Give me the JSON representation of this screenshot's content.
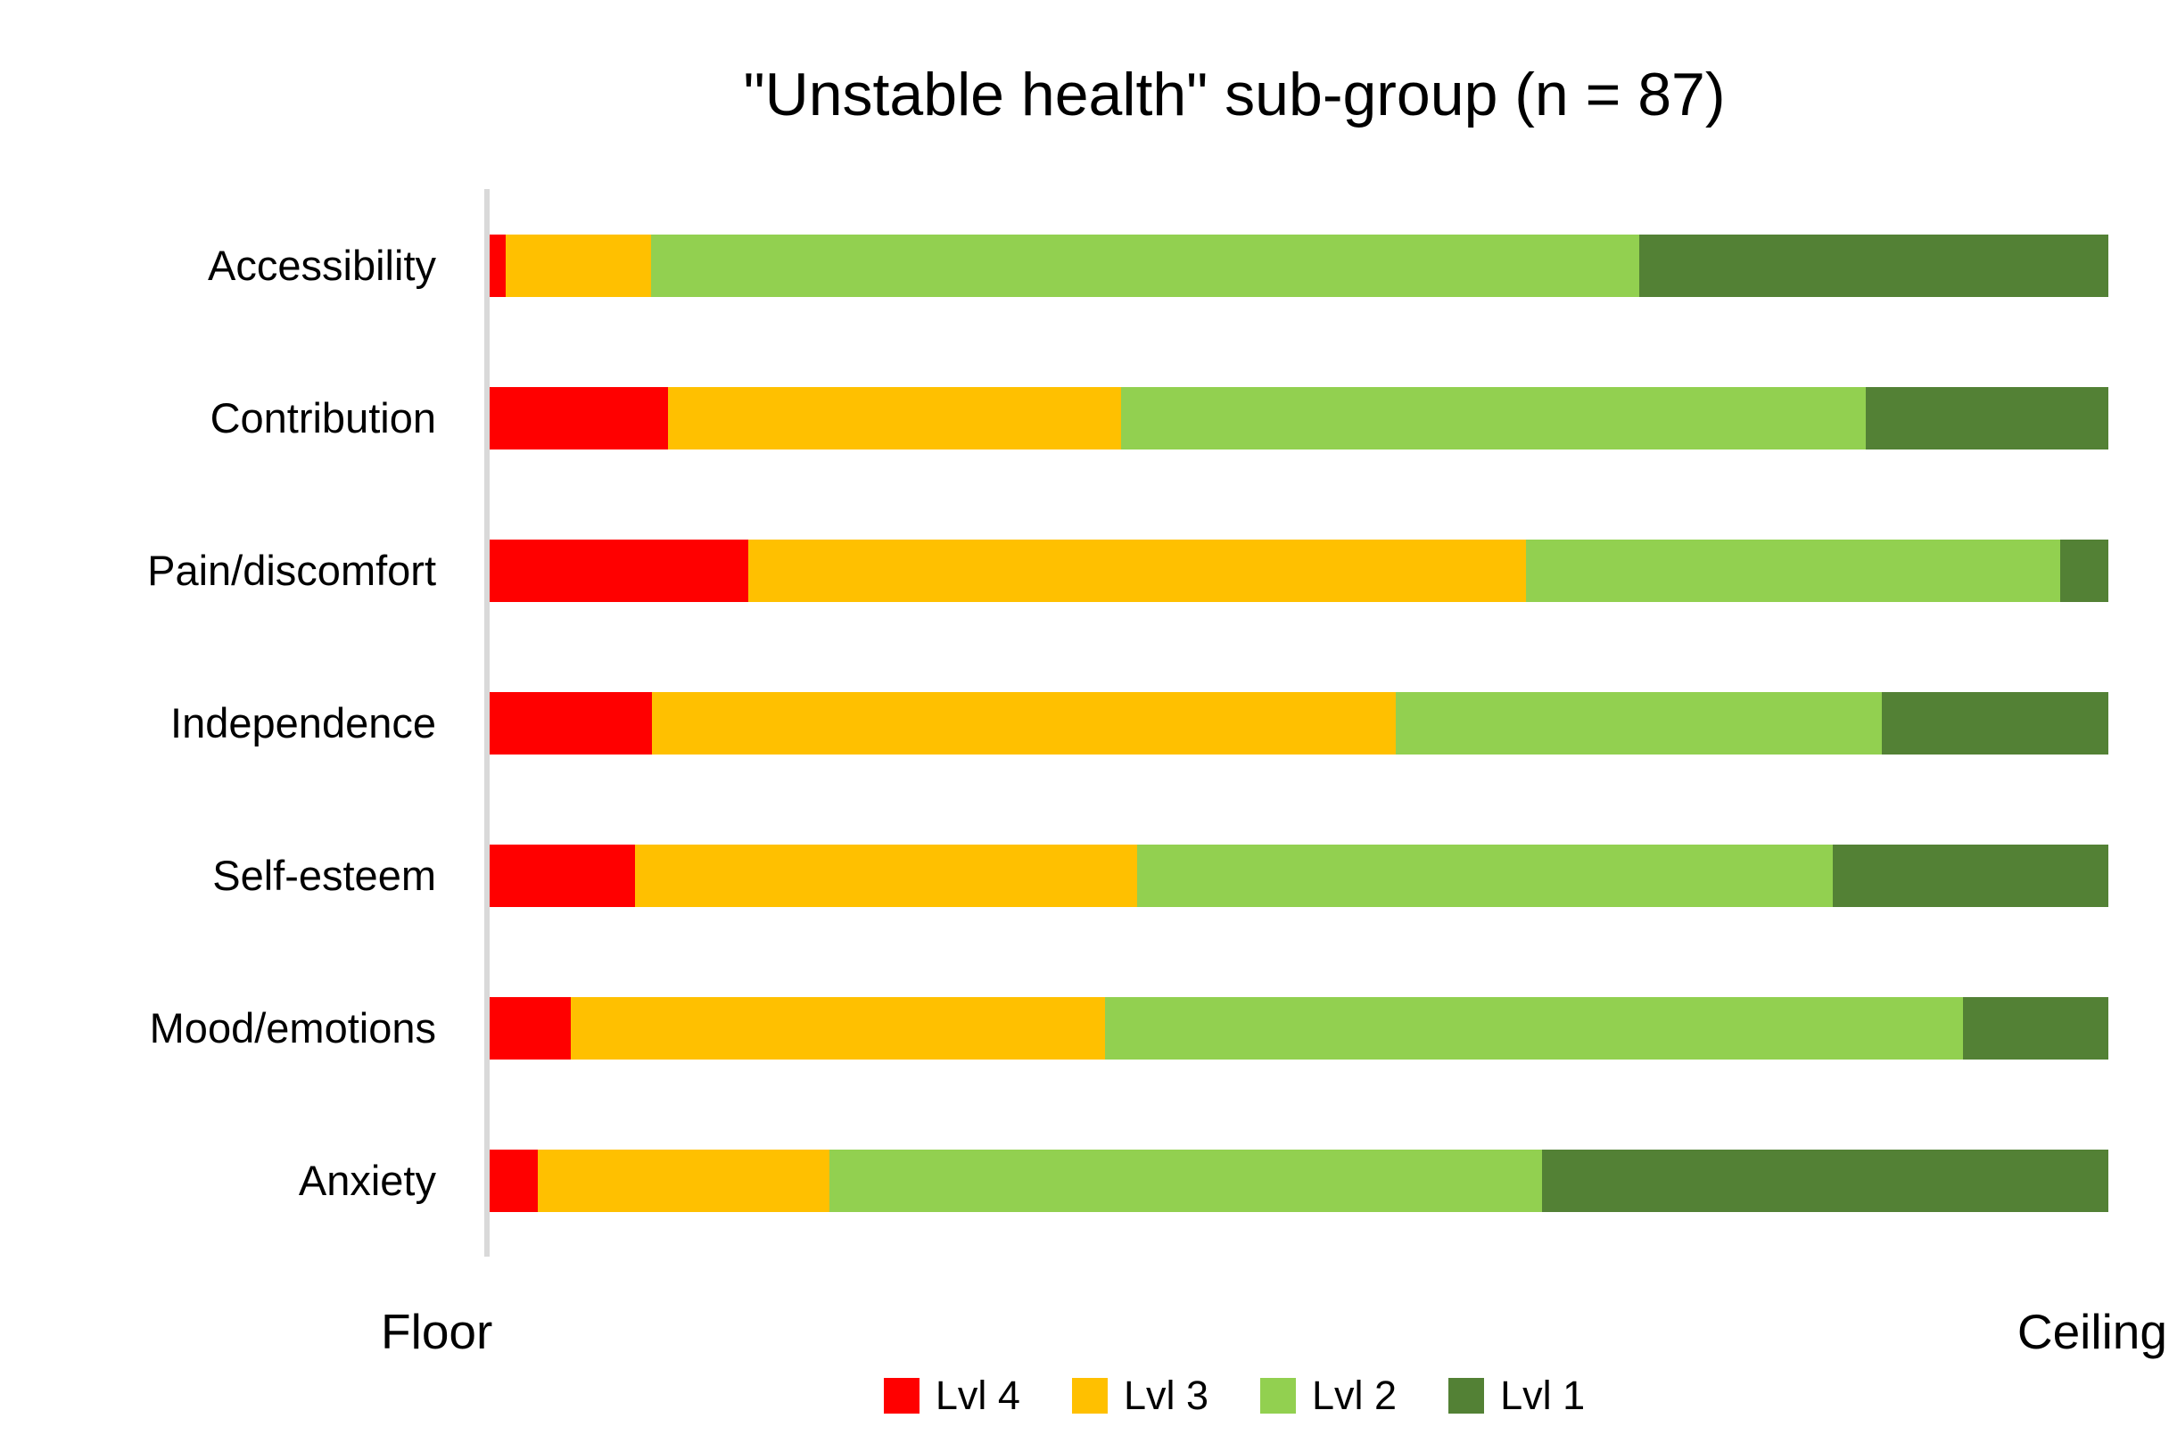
{
  "chart_data": {
    "type": "bar",
    "orientation": "horizontal",
    "stacked": true,
    "stacked_total_percent": 100,
    "title": "\"Unstable health\" sub-group (n = 87)",
    "n": 87,
    "categories": [
      "Accessibility",
      "Contribution",
      "Pain/discomfort",
      "Independence",
      "Self-esteem",
      "Mood/emotions",
      "Anxiety"
    ],
    "series": [
      {
        "name": "Lvl 4",
        "color": "#FF0000",
        "values": [
          1,
          11,
          16,
          10,
          9,
          5,
          3
        ]
      },
      {
        "name": "Lvl 3",
        "color": "#FFC000",
        "values": [
          9,
          28,
          48,
          46,
          31,
          33,
          18
        ]
      },
      {
        "name": "Lvl 2",
        "color": "#92D050",
        "values": [
          61,
          46,
          33,
          30,
          43,
          53,
          44
        ]
      },
      {
        "name": "Lvl 1",
        "color": "#538135",
        "values": [
          29,
          15,
          3,
          14,
          17,
          9,
          35
        ]
      }
    ],
    "x_axis": {
      "min_label": "Floor",
      "max_label": "Ceiling"
    },
    "legend_position": "bottom",
    "grid": false,
    "axis_line_color": "#D9D9D9",
    "background_color": "#FFFFFF",
    "text_color": "#000000"
  }
}
